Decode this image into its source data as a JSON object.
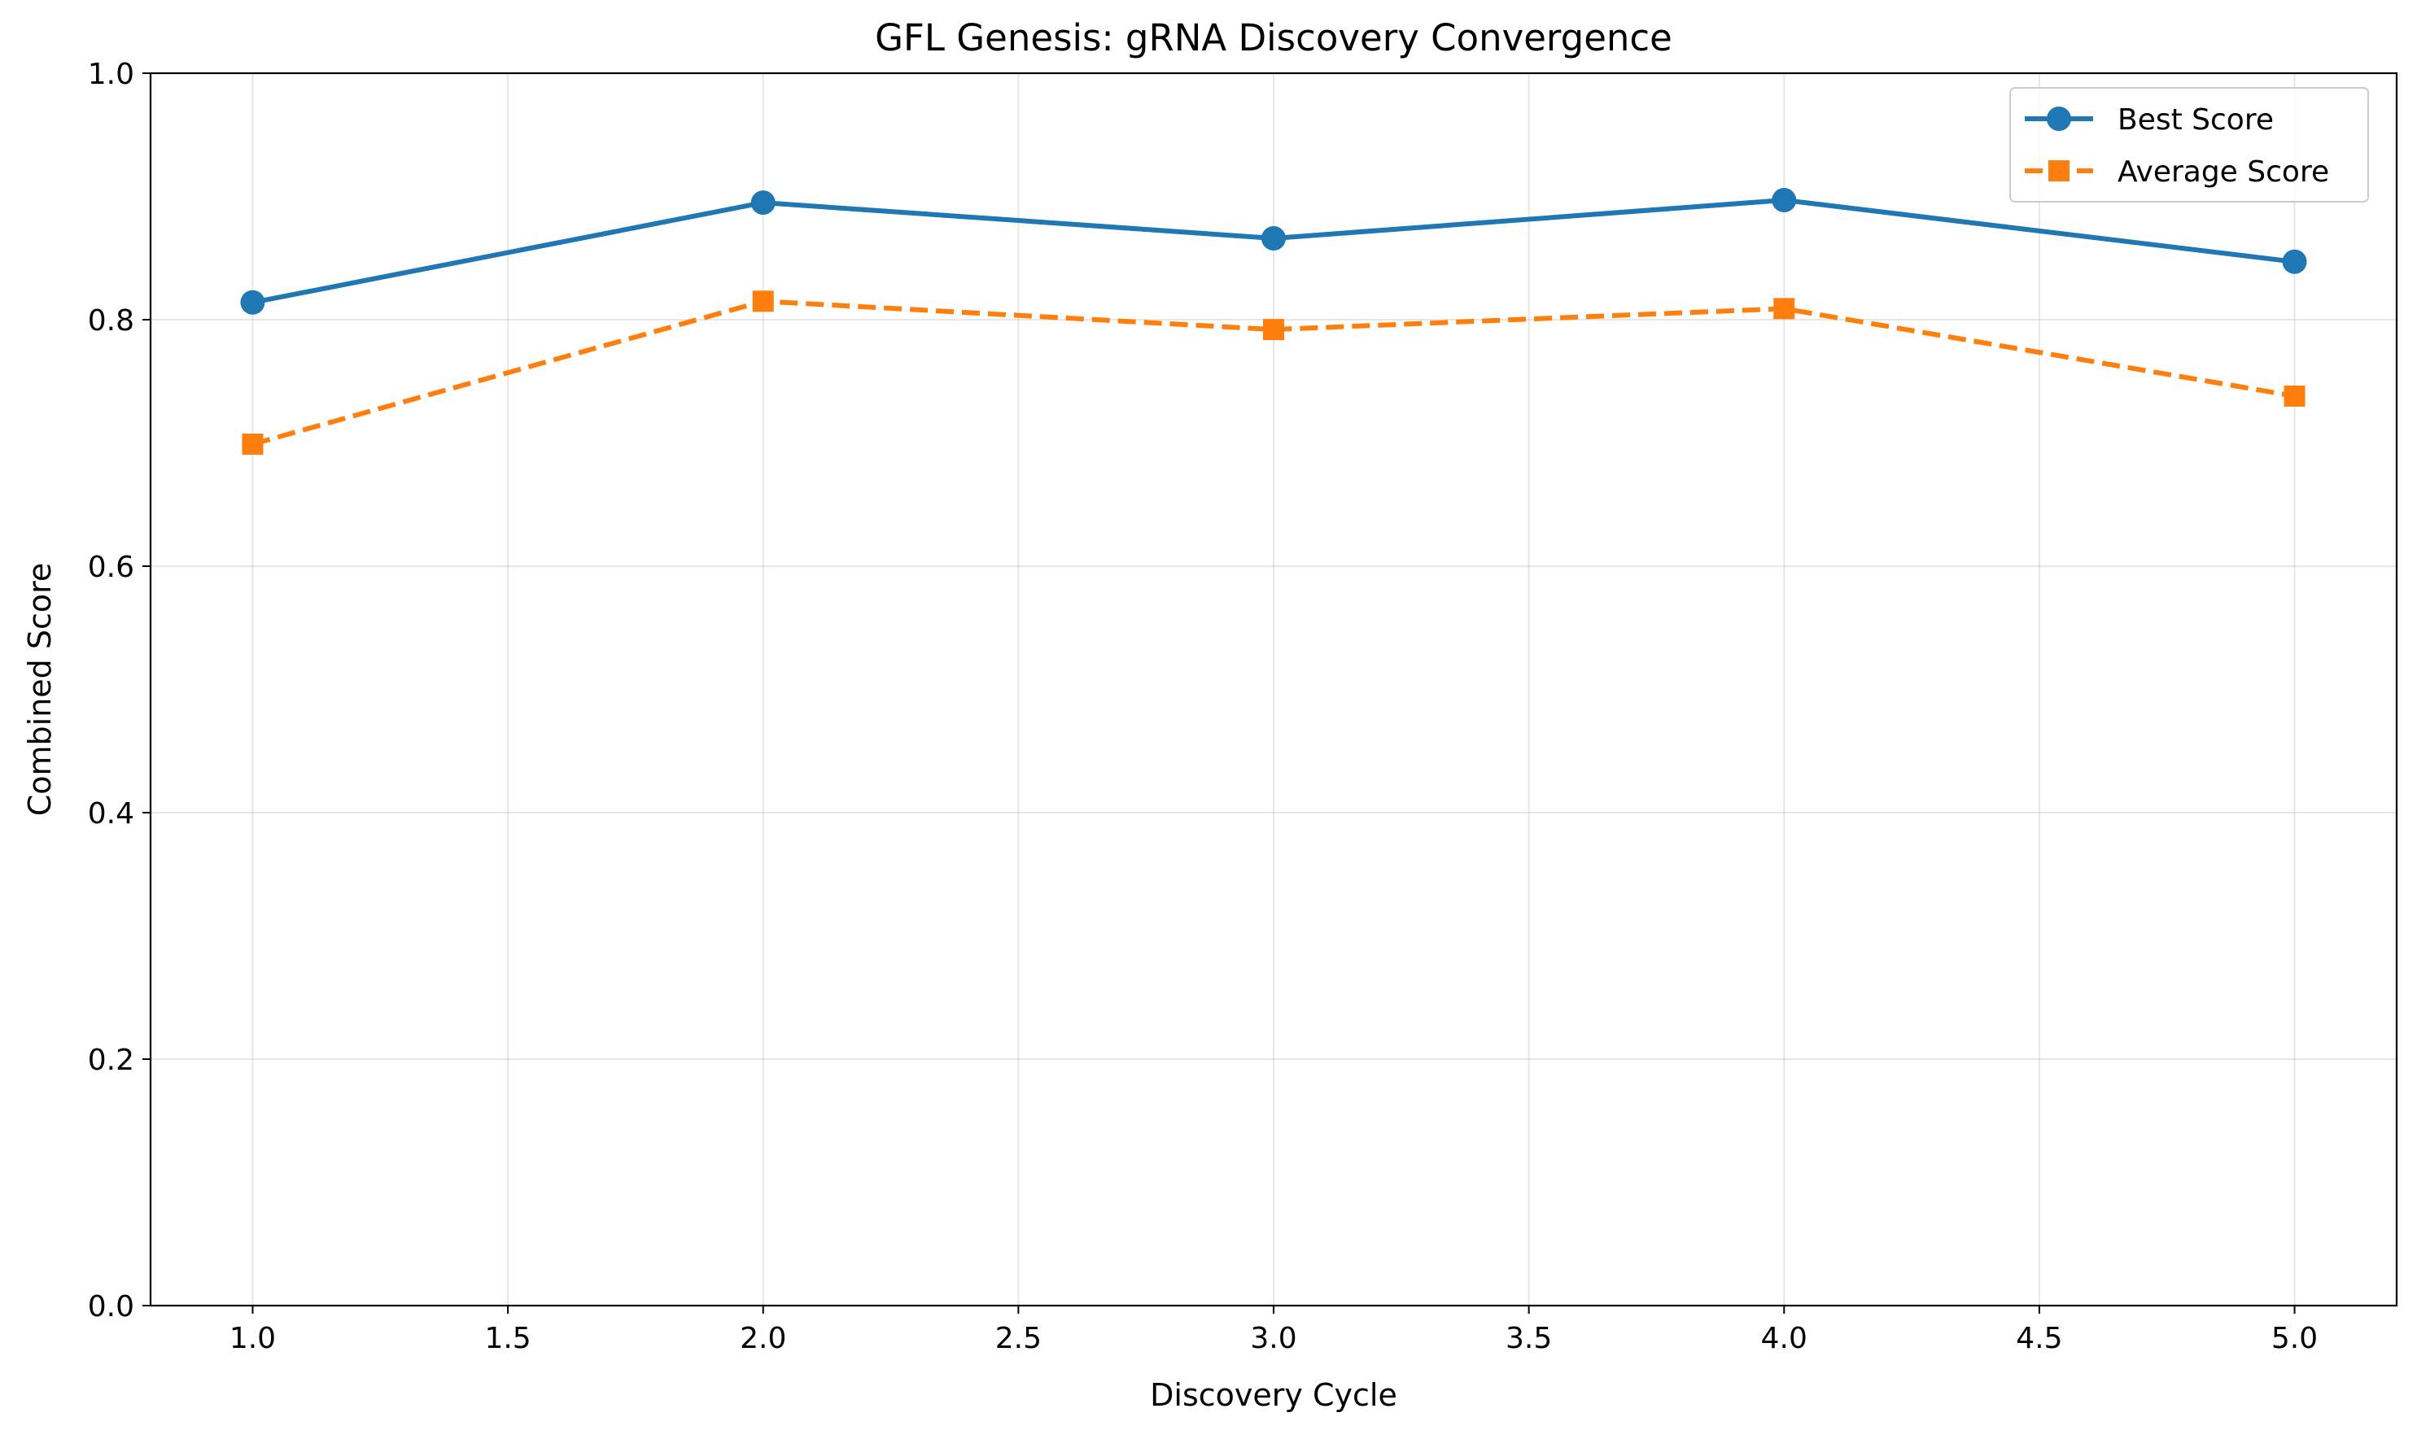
{
  "chart_data": {
    "type": "line",
    "title": "GFL Genesis: gRNA Discovery Convergence",
    "xlabel": "Discovery Cycle",
    "ylabel": "Combined Score",
    "xlim": [
      0.8,
      5.2
    ],
    "ylim": [
      0.0,
      1.0
    ],
    "x_ticks": [
      "1.0",
      "1.5",
      "2.0",
      "2.5",
      "3.0",
      "3.5",
      "4.0",
      "4.5",
      "5.0"
    ],
    "x_tick_values": [
      1.0,
      1.5,
      2.0,
      2.5,
      3.0,
      3.5,
      4.0,
      4.5,
      5.0
    ],
    "y_ticks": [
      "0.0",
      "0.2",
      "0.4",
      "0.6",
      "0.8",
      "1.0"
    ],
    "y_tick_values": [
      0.0,
      0.2,
      0.4,
      0.6,
      0.8,
      1.0
    ],
    "grid": true,
    "legend_position": "top-right",
    "x": [
      1,
      2,
      3,
      4,
      5
    ],
    "series": [
      {
        "name": "Best Score",
        "values": [
          0.814,
          0.895,
          0.866,
          0.897,
          0.847
        ],
        "color": "#1f77b4",
        "marker": "circle",
        "line_style": "solid"
      },
      {
        "name": "Average Score",
        "values": [
          0.699,
          0.815,
          0.792,
          0.809,
          0.738
        ],
        "color": "#ff7f0e",
        "marker": "square",
        "line_style": "dashed"
      }
    ]
  }
}
